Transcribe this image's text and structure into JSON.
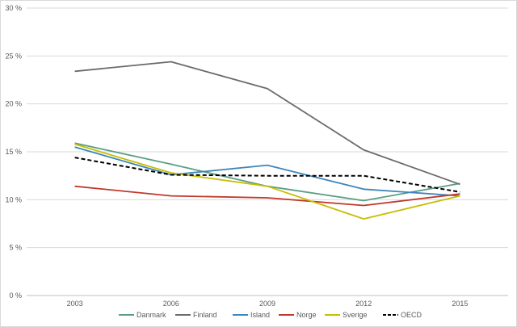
{
  "chart_data": {
    "type": "line",
    "x": [
      "2003",
      "2006",
      "2009",
      "2012",
      "2015"
    ],
    "ylim": [
      0,
      30
    ],
    "y_ticks": [
      "0 %",
      "5 %",
      "10 %",
      "15 %",
      "20 %",
      "25 %",
      "30 %"
    ],
    "y_tick_values": [
      0,
      5,
      10,
      15,
      20,
      25,
      30
    ],
    "grid": "horizontal",
    "legend_position": "bottom",
    "series": [
      {
        "name": "Danmark",
        "color": "#5b9e85",
        "dash": false,
        "values": [
          15.9,
          13.7,
          11.4,
          9.9,
          11.7
        ]
      },
      {
        "name": "Finland",
        "color": "#6b6b6b",
        "dash": false,
        "values": [
          23.4,
          24.4,
          21.6,
          15.2,
          11.6
        ]
      },
      {
        "name": "Island",
        "color": "#3f86b8",
        "dash": false,
        "values": [
          15.5,
          12.6,
          13.6,
          11.1,
          10.4
        ]
      },
      {
        "name": "Norge",
        "color": "#c0392b",
        "dash": false,
        "values": [
          11.4,
          10.4,
          10.2,
          9.4,
          10.6
        ]
      },
      {
        "name": "Sverige",
        "color": "#c8bd00",
        "dash": false,
        "values": [
          15.8,
          12.8,
          11.4,
          8.0,
          10.4
        ]
      },
      {
        "name": "OECD",
        "color": "#000000",
        "dash": true,
        "values": [
          14.4,
          12.6,
          12.5,
          12.5,
          10.8
        ]
      }
    ]
  }
}
